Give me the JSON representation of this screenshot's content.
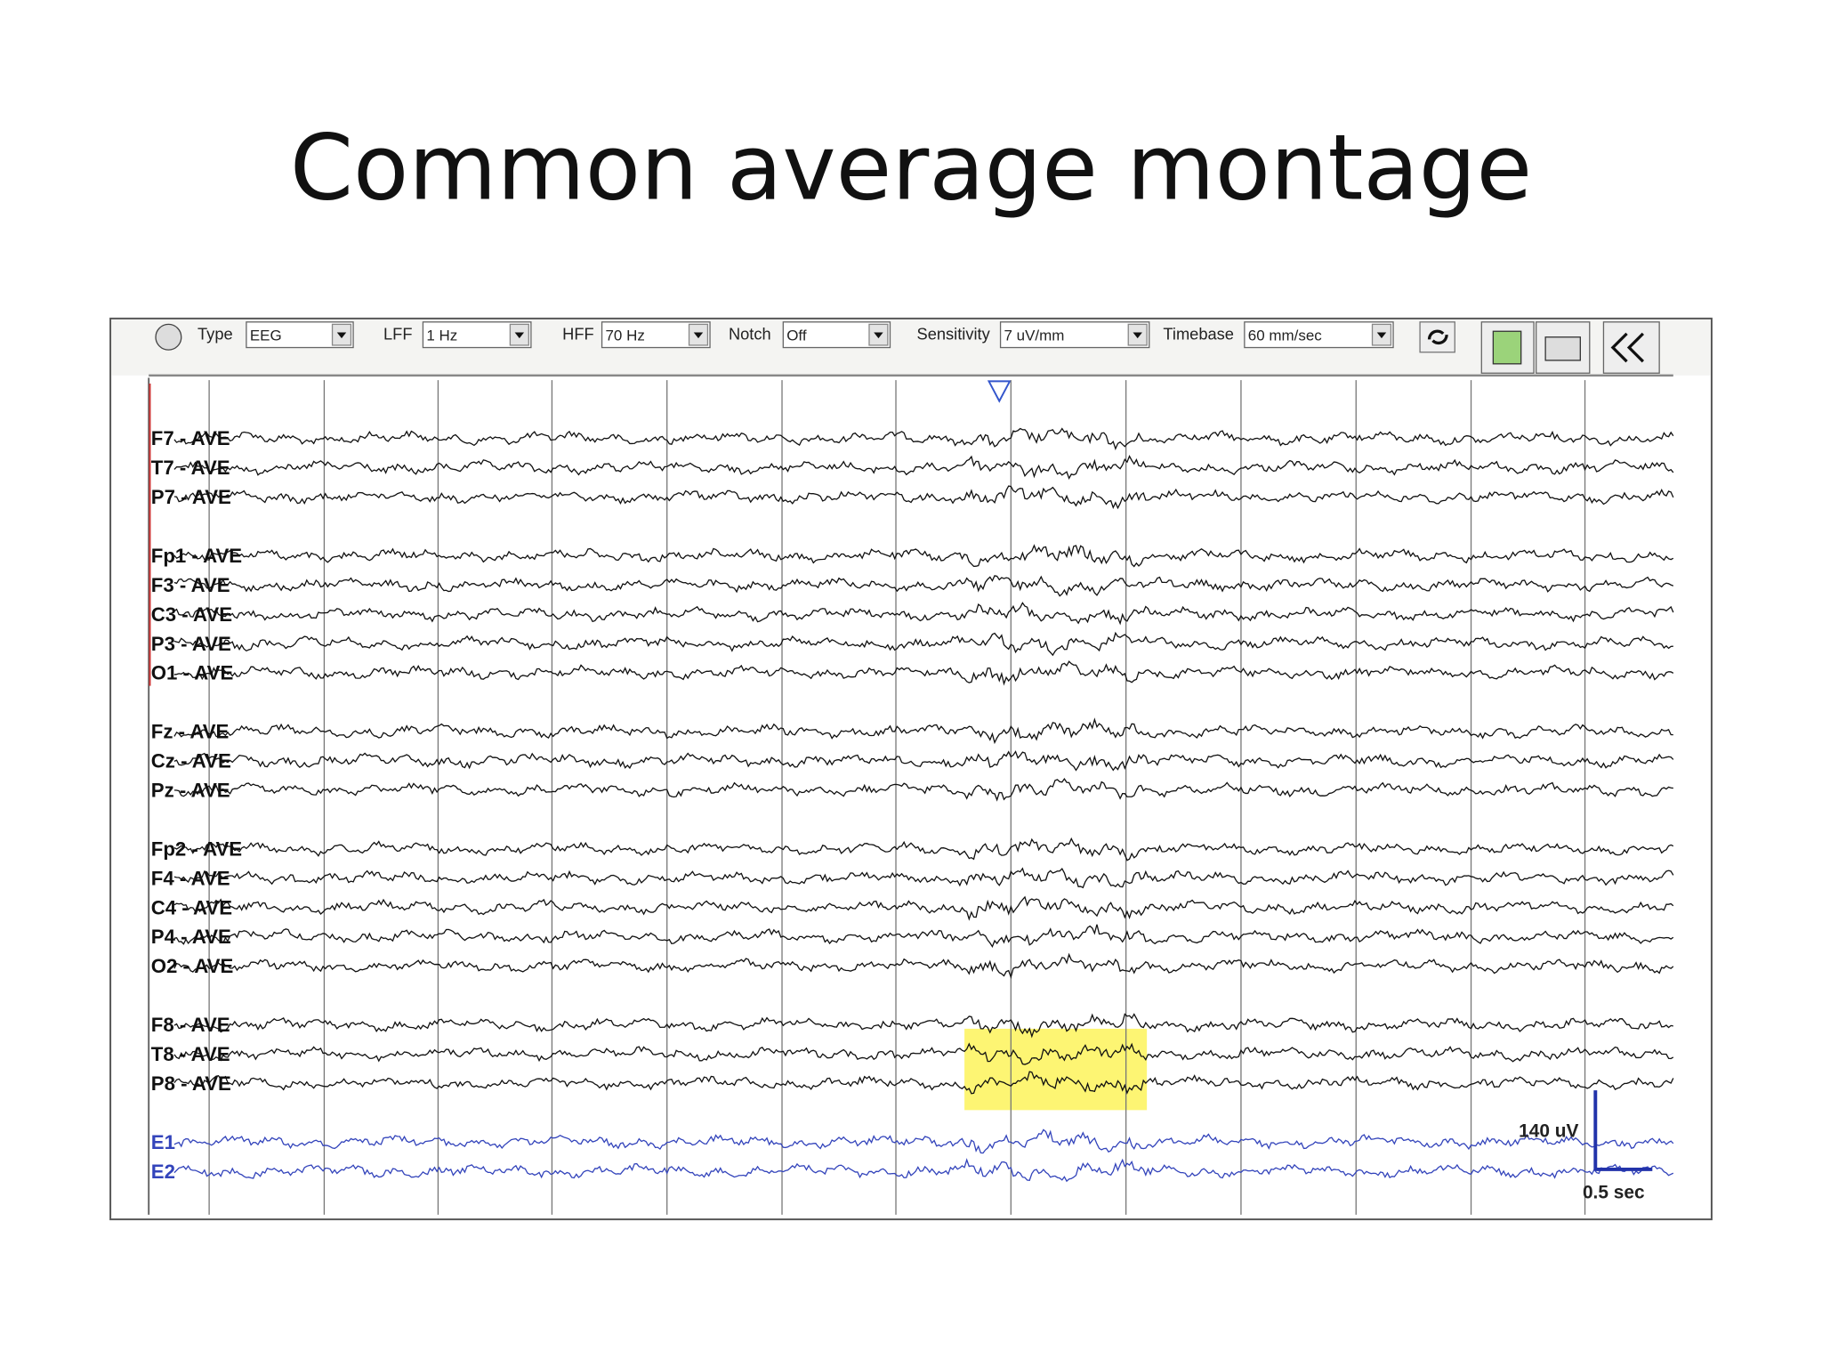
{
  "title": "Common average montage",
  "toolbar": {
    "controls": [
      {
        "label": "Type",
        "value": "EEG"
      },
      {
        "label": "LFF",
        "value": "1 Hz"
      },
      {
        "label": "HFF",
        "value": "70 Hz"
      },
      {
        "label": "Notch",
        "value": "Off"
      },
      {
        "label": "Sensitivity",
        "value": "7 uV/mm"
      },
      {
        "label": "Timebase",
        "value": "60 mm/sec"
      }
    ]
  },
  "channel_groups": [
    [
      "F7 - AVE",
      "T7 - AVE",
      "P7 - AVE"
    ],
    [
      "Fp1 - AVE",
      "F3 - AVE",
      "C3 - AVE",
      "P3 - AVE",
      "O1 - AVE"
    ],
    [
      "Fz - AVE",
      "Cz - AVE",
      "Pz - AVE"
    ],
    [
      "Fp2 - AVE",
      "F4 - AVE",
      "C4 - AVE",
      "P4 - AVE",
      "O2 - AVE"
    ],
    [
      "F8 - AVE",
      "T8 - AVE",
      "P8 - AVE"
    ],
    [
      "E1",
      "E2"
    ]
  ],
  "calibration": {
    "amplitude": "140 uV",
    "time": "0.5 sec"
  }
}
